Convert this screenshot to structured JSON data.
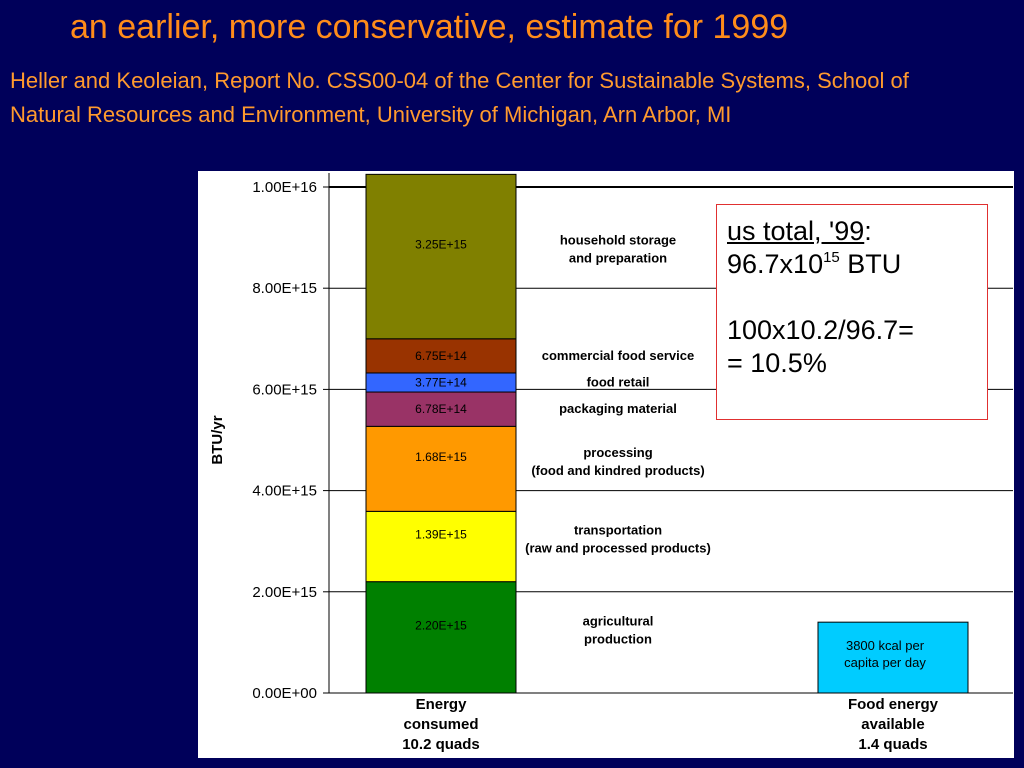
{
  "slide": {
    "title": "an earlier, more conservative, estimate for 1999",
    "citation": "Heller and Keoleian, Report No. CSS00-04 of the Center for Sustainable Systems, School of Natural Resources and Environment, University of Michigan, Arn Arbor, MI"
  },
  "note": {
    "line1_underlined": "us total, '99",
    "line1_colon": ":",
    "line2_base": "96.7x10",
    "line2_exp": "15",
    "line2_unit": " BTU",
    "line3": "100x10.2/96.7=",
    "line4": "= 10.5%"
  },
  "chart_data": {
    "type": "bar",
    "stacked": true,
    "ylabel": "BTU/yr",
    "ylim": [
      0,
      1e+16
    ],
    "yticks": [
      {
        "value": 0,
        "label": "0.00E+00"
      },
      {
        "value": 2000000000000000.0,
        "label": "2.00E+15"
      },
      {
        "value": 4000000000000000.0,
        "label": "4.00E+15"
      },
      {
        "value": 6000000000000000.0,
        "label": "6.00E+15"
      },
      {
        "value": 8000000000000000.0,
        "label": "8.00E+15"
      },
      {
        "value": 1e+16,
        "label": "1.00E+16"
      }
    ],
    "grid": true,
    "categories": [
      {
        "name": "Energy",
        "sub1": "consumed",
        "sub2": "10.2 quads"
      },
      {
        "name": "Food energy",
        "sub1": "available",
        "sub2": "1.4 quads"
      }
    ],
    "energy_consumed_segments": [
      {
        "label_line1": "agricultural",
        "label_line2": "production",
        "value": 2200000000000000.0,
        "value_label": "2.20E+15",
        "color": "#008000"
      },
      {
        "label_line1": "transportation",
        "label_line2": "(raw and processed products)",
        "value": 1390000000000000.0,
        "value_label": "1.39E+15",
        "color": "#ffff00"
      },
      {
        "label_line1": "processing",
        "label_line2": "(food and kindred products)",
        "value": 1680000000000000.0,
        "value_label": "1.68E+15",
        "color": "#ff9900"
      },
      {
        "label_line1": "packaging material",
        "label_line2": "",
        "value": 678000000000000.0,
        "value_label": "6.78E+14",
        "color": "#993366"
      },
      {
        "label_line1": "food retail",
        "label_line2": "",
        "value": 377000000000000.0,
        "value_label": "3.77E+14",
        "color": "#3366ff"
      },
      {
        "label_line1": "commercial food service",
        "label_line2": "",
        "value": 675000000000000.0,
        "value_label": "6.75E+14",
        "color": "#993300"
      },
      {
        "label_line1": "household storage",
        "label_line2": "and preparation",
        "value": 3250000000000000.0,
        "value_label": "3.25E+15",
        "color": "#808000"
      }
    ],
    "food_energy_available": {
      "value": 1400000000000000.0,
      "color": "#00ccff",
      "label_line1": "3800 kcal per",
      "label_line2": "capita per day"
    }
  }
}
